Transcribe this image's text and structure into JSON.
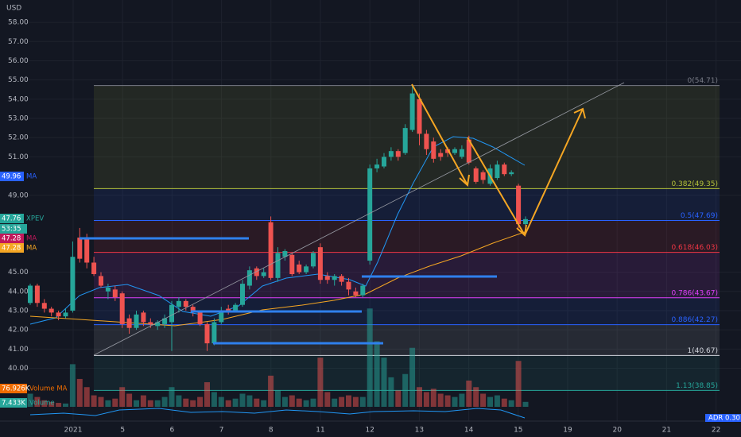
{
  "chart_data": {
    "type": "candlestick",
    "currency": "USD",
    "ylim": [
      38.7,
      59.16
    ],
    "yticks": [
      {
        "value": 58,
        "label": "58.00"
      },
      {
        "value": 57,
        "label": "57.00"
      },
      {
        "value": 56,
        "label": "56.00"
      },
      {
        "value": 55,
        "label": "55.00"
      },
      {
        "value": 54,
        "label": "54.00"
      },
      {
        "value": 53,
        "label": "53.00"
      },
      {
        "value": 52,
        "label": "52.00"
      },
      {
        "value": 51,
        "label": "51.00"
      },
      {
        "value": 49,
        "label": "49.00"
      },
      {
        "value": 45,
        "label": "45.00"
      },
      {
        "value": 44,
        "label": "44.00"
      },
      {
        "value": 43,
        "label": "43.00"
      },
      {
        "value": 42,
        "label": "42.00"
      },
      {
        "value": 41,
        "label": "41.00"
      },
      {
        "value": 40,
        "label": "40.00"
      }
    ],
    "xticks": [
      "2021",
      "5",
      "6",
      "7",
      "8",
      "11",
      "12",
      "13",
      "14",
      "15",
      "19",
      "20",
      "21",
      "22"
    ],
    "up_color": "#26a69a",
    "down_color": "#ef5350",
    "open": [
      43.4,
      44.3,
      43.4,
      43.1,
      42.9,
      42.7,
      43.0,
      46.8,
      46.7,
      45.5,
      44.8,
      44.0,
      44.1,
      43.9,
      42.6,
      42.1,
      42.9,
      42.4,
      42.2,
      42.3,
      42.4,
      43.2,
      43.5,
      43.2,
      42.9,
      42.3,
      41.3,
      42.4,
      43.1,
      43.0,
      43.3,
      44.3,
      45.2,
      44.8,
      47.6,
      44.7,
      45.8,
      45.9,
      45.4,
      45.0,
      45.3,
      46.3,
      44.8,
      44.6,
      44.8,
      44.5,
      44.0,
      43.8,
      45.6,
      50.4,
      50.5,
      51.0,
      51.3,
      51.2,
      52.4,
      54.0,
      52.2,
      51.8,
      51.2,
      51.4,
      51.2,
      51.0,
      51.9,
      50.4,
      50.2,
      49.6,
      49.9,
      50.6,
      50.1,
      49.5,
      47.5
    ],
    "high": [
      44.4,
      44.4,
      43.6,
      43.2,
      43.0,
      43.1,
      46.6,
      47.3,
      47.0,
      45.8,
      45.0,
      44.4,
      44.3,
      44.0,
      42.8,
      43.0,
      43.0,
      42.6,
      42.5,
      42.8,
      43.5,
      43.7,
      43.6,
      43.3,
      43.0,
      42.4,
      42.6,
      43.2,
      43.3,
      43.4,
      44.6,
      45.3,
      45.3,
      45.2,
      47.9,
      46.3,
      46.2,
      46.0,
      45.6,
      45.4,
      46.1,
      46.5,
      45.0,
      44.9,
      44.9,
      44.7,
      44.2,
      44.4,
      50.6,
      50.9,
      51.2,
      51.5,
      51.4,
      52.7,
      54.7,
      54.3,
      52.4,
      52.0,
      51.4,
      51.5,
      51.5,
      51.6,
      52.1,
      50.5,
      50.3,
      50.6,
      50.8,
      50.7,
      50.3,
      49.6,
      47.9
    ],
    "low": [
      43.3,
      43.2,
      42.9,
      42.7,
      42.5,
      42.6,
      42.9,
      45.5,
      45.2,
      44.8,
      44.2,
      43.6,
      43.5,
      42.1,
      41.8,
      42.0,
      42.2,
      42.1,
      42.0,
      42.1,
      40.9,
      42.9,
      43.0,
      42.7,
      42.2,
      40.9,
      41.2,
      42.3,
      42.8,
      42.9,
      43.2,
      44.1,
      44.6,
      44.7,
      44.6,
      44.5,
      45.6,
      44.8,
      44.9,
      44.9,
      45.2,
      44.4,
      44.4,
      44.3,
      44.3,
      43.8,
      43.7,
      43.7,
      45.4,
      50.2,
      50.4,
      50.8,
      50.8,
      51.1,
      52.3,
      51.6,
      51.1,
      50.7,
      50.8,
      51.0,
      51.1,
      50.9,
      50.6,
      49.6,
      49.6,
      49.5,
      49.8,
      50.0,
      50.0,
      47.3,
      47.4
    ],
    "close": [
      44.3,
      43.4,
      43.1,
      42.9,
      42.7,
      42.9,
      45.8,
      45.7,
      45.5,
      44.9,
      44.3,
      44.2,
      43.7,
      42.3,
      42.1,
      42.8,
      42.4,
      42.3,
      42.4,
      42.6,
      43.3,
      43.5,
      43.2,
      42.9,
      42.3,
      41.3,
      42.4,
      43.0,
      43.0,
      43.3,
      44.4,
      45.1,
      44.8,
      45.0,
      44.7,
      46.0,
      46.1,
      44.9,
      45.0,
      45.3,
      46.0,
      44.6,
      44.6,
      44.8,
      44.5,
      44.1,
      43.8,
      44.3,
      50.4,
      50.6,
      51.0,
      51.3,
      51.0,
      52.5,
      54.3,
      52.2,
      51.4,
      50.9,
      51.0,
      51.2,
      51.4,
      51.4,
      50.7,
      49.7,
      49.8,
      50.4,
      50.6,
      50.1,
      50.2,
      47.5,
      47.76
    ],
    "volume": [
      40,
      30,
      20,
      15,
      12,
      10,
      130,
      85,
      60,
      35,
      30,
      20,
      25,
      60,
      40,
      20,
      35,
      20,
      20,
      30,
      60,
      35,
      25,
      20,
      30,
      75,
      45,
      30,
      20,
      25,
      40,
      35,
      25,
      20,
      95,
      50,
      30,
      35,
      25,
      20,
      25,
      150,
      45,
      25,
      30,
      35,
      30,
      30,
      300,
      200,
      150,
      90,
      50,
      100,
      180,
      60,
      45,
      55,
      40,
      35,
      30,
      40,
      80,
      60,
      40,
      30,
      35,
      25,
      20,
      140,
      15
    ],
    "vlim": [
      0,
      320
    ],
    "fib_levels": [
      {
        "label": "0(54.71)",
        "value": 54.71,
        "color": "#787b86"
      },
      {
        "label": "0.382(49.35)",
        "value": 49.35,
        "color": "#b5c23a"
      },
      {
        "label": "0.5(47.69)",
        "value": 47.69,
        "color": "#2962ff"
      },
      {
        "label": "0.618(46.03)",
        "value": 46.03,
        "color": "#f23645"
      },
      {
        "label": "0.786(43.67)",
        "value": 43.67,
        "color": "#e040fb"
      },
      {
        "label": "0.886(42.27)",
        "value": 42.27,
        "color": "#2962ff"
      },
      {
        "label": "1(40.67)",
        "value": 40.67,
        "color": "#d1d4dc"
      },
      {
        "label": "1.13(38.85)",
        "value": 38.85,
        "color": "#26a69a"
      }
    ],
    "tags": [
      {
        "value": "49.96",
        "name": "MA",
        "color": "#2962ff"
      },
      {
        "value": "47.76",
        "name": "XPEV",
        "color": "#26a69a"
      },
      {
        "value": "53:35",
        "name": "",
        "color": "#26a69a"
      },
      {
        "value": "47.28",
        "name": "MA",
        "color": "#c2185b"
      },
      {
        "value": "47.28",
        "name": "MA",
        "color": "#f5a623"
      },
      {
        "value": "76.926K",
        "name": "Volume MA",
        "color": "#ef6c00"
      },
      {
        "value": "7.433K",
        "name": "Volume",
        "color": "#26a69a"
      }
    ],
    "adr": {
      "name": "ADR",
      "value": "0.30"
    }
  }
}
